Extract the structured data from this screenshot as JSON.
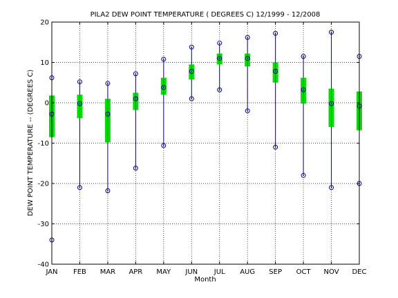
{
  "chart_data": {
    "type": "box-range",
    "title": "PILA2  DEW POINT TEMPERATURE ( DEGREES C) 12/1999 - 12/2008",
    "xlabel": "Month",
    "ylabel": "DEW POINT TEMPERATURE -- (DEGREES C)",
    "categories": [
      "JAN",
      "FEB",
      "MAR",
      "APR",
      "MAY",
      "JUN",
      "JUL",
      "AUG",
      "SEP",
      "OCT",
      "NOV",
      "DEC"
    ],
    "ylim": [
      -40,
      20
    ],
    "yticks": [
      -40,
      -30,
      -20,
      -10,
      0,
      10,
      20
    ],
    "grid": true,
    "series": [
      {
        "min": [
          -34.0,
          -21.0,
          -21.8,
          -16.2,
          -10.6,
          1.0,
          3.2,
          -2.0,
          -11.0,
          -18.0,
          -21.0,
          -20.0
        ],
        "q1": [
          -8.5,
          -3.8,
          -9.8,
          -1.8,
          2.0,
          5.8,
          9.5,
          9.0,
          5.0,
          -0.2,
          -6.0,
          -6.8
        ],
        "mean": [
          -2.8,
          -0.2,
          -2.8,
          1.0,
          3.8,
          7.8,
          11.0,
          11.0,
          7.8,
          3.2,
          -0.2,
          -0.8
        ],
        "q3": [
          1.8,
          2.0,
          1.0,
          2.5,
          6.2,
          9.5,
          12.2,
          12.2,
          10.0,
          6.2,
          3.5,
          2.8
        ],
        "max": [
          6.2,
          5.2,
          4.8,
          7.2,
          10.8,
          13.8,
          14.8,
          16.2,
          17.2,
          11.5,
          17.5,
          11.5
        ]
      }
    ],
    "colors": {
      "range_line": "#00008b",
      "box": "#00dd00",
      "marker": "#00008b",
      "grid": "#000000"
    }
  }
}
